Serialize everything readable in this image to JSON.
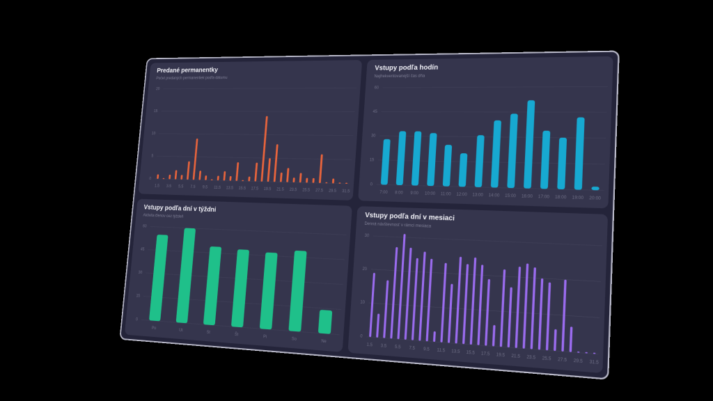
{
  "chart_data": [
    {
      "type": "bar",
      "title": "Predané permanentky",
      "subtitle": "Počet predaných permanentiek podľa dátumu",
      "categories": [
        "1.5",
        null,
        "3.5",
        null,
        "5.5",
        null,
        "7.5",
        null,
        "9.5",
        null,
        "11.5",
        null,
        "13.5",
        null,
        "15.5",
        null,
        "17.5",
        null,
        "19.5",
        null,
        "21.5",
        null,
        "23.5",
        null,
        "25.5",
        null,
        "27.5",
        null,
        "29.5",
        null,
        "31.5"
      ],
      "values": [
        1,
        0,
        1,
        2,
        1,
        4,
        9,
        2,
        1,
        0,
        1,
        2,
        1,
        4,
        0,
        1,
        4,
        14,
        5,
        8,
        2,
        3,
        1,
        2,
        1,
        1,
        6,
        0,
        1,
        0,
        0
      ],
      "color": "#e8643c",
      "ylim": [
        0,
        20
      ],
      "yticks": [
        0,
        5,
        10,
        15,
        20
      ]
    },
    {
      "type": "bar",
      "title": "Vstupy podľa hodín",
      "subtitle": "Najfrekventovanejší čas dňa",
      "categories": [
        "7:00",
        "8:00",
        "9:00",
        "10:00",
        "11:00",
        "12:00",
        "13:00",
        "14:00",
        "15:00",
        "16:00",
        "17:00",
        "18:00",
        "19:00",
        "20:00"
      ],
      "values": [
        28,
        33,
        33,
        32,
        25,
        20,
        31,
        40,
        44,
        52,
        34,
        30,
        42,
        2
      ],
      "color": "#17a9d1",
      "ylim": [
        0,
        60
      ],
      "yticks": [
        0,
        15,
        30,
        45,
        60
      ]
    },
    {
      "type": "bar",
      "title": "Vstupy podľa dní v týždni",
      "subtitle": "Aktivita členov cez týždeň",
      "categories": [
        "Po",
        "Ut",
        "St",
        "Št",
        "Pi",
        "So",
        "Ne"
      ],
      "values": [
        55,
        60,
        49,
        48,
        47,
        49,
        14
      ],
      "color": "#1fc08a",
      "ylim": [
        0,
        60
      ],
      "yticks": [
        0,
        15,
        30,
        45,
        60
      ]
    },
    {
      "type": "bar",
      "title": "Vstupy podľa dní v mesiaci",
      "subtitle": "Denná návštevnosť v rámci mesiaca",
      "categories": [
        "1.5",
        null,
        "3.5",
        null,
        "5.5",
        null,
        "7.5",
        null,
        "9.5",
        null,
        "11.5",
        null,
        "13.5",
        null,
        "15.5",
        null,
        "17.5",
        null,
        "19.5",
        null,
        "21.5",
        null,
        "23.5",
        null,
        "25.5",
        null,
        "27.5",
        null,
        "29.5",
        null,
        "31.5"
      ],
      "values": [
        19,
        7,
        17,
        27,
        31,
        27,
        24,
        26,
        24,
        3,
        23,
        17,
        25,
        23,
        25,
        23,
        19,
        6,
        22,
        17,
        23,
        24,
        23,
        20,
        19,
        6,
        20,
        7,
        0,
        0,
        0
      ],
      "color": "#9b6cf0",
      "ylim": [
        0,
        30
      ],
      "yticks": [
        0,
        10,
        20,
        30
      ]
    }
  ]
}
